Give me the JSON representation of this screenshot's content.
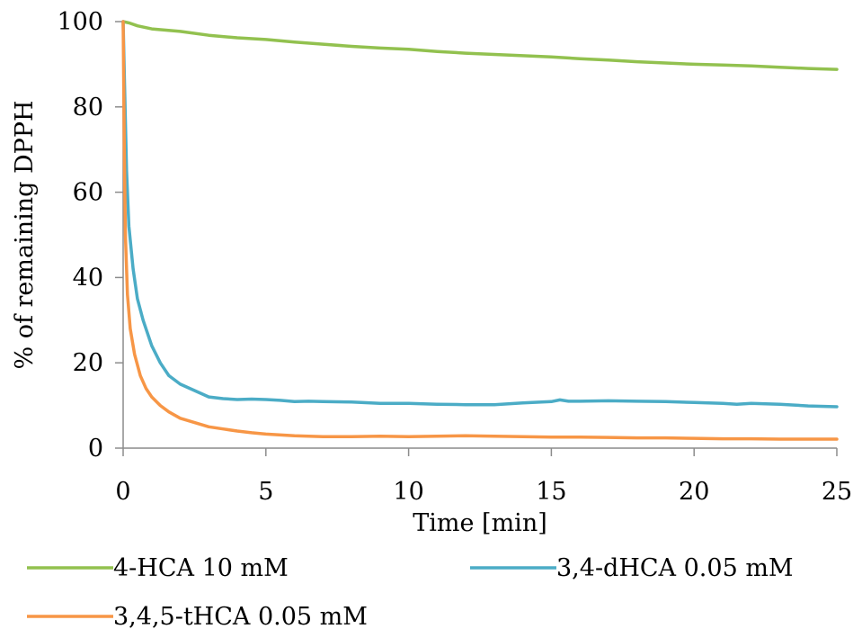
{
  "chart_data": {
    "type": "line",
    "title": "",
    "xlabel": "Time [min]",
    "ylabel": "% of remaining DPPH",
    "xlim": [
      0,
      25
    ],
    "ylim": [
      0,
      100
    ],
    "xticks": [
      0,
      5,
      10,
      15,
      20,
      25
    ],
    "yticks": [
      0,
      20,
      40,
      60,
      80,
      100
    ],
    "grid": false,
    "legend_position": "bottom",
    "series": [
      {
        "name": "4-HCA 10 mM",
        "color": "#92c14f",
        "points": [
          [
            0,
            100
          ],
          [
            0.2,
            99.7
          ],
          [
            0.5,
            99
          ],
          [
            1,
            98.3
          ],
          [
            2,
            97.7
          ],
          [
            3,
            96.8
          ],
          [
            4,
            96.2
          ],
          [
            5,
            95.8
          ],
          [
            6,
            95.2
          ],
          [
            7,
            94.7
          ],
          [
            8,
            94.2
          ],
          [
            9,
            93.8
          ],
          [
            10,
            93.5
          ],
          [
            11,
            93
          ],
          [
            12,
            92.6
          ],
          [
            13,
            92.3
          ],
          [
            14,
            92
          ],
          [
            15,
            91.7
          ],
          [
            16,
            91.3
          ],
          [
            17,
            91
          ],
          [
            18,
            90.6
          ],
          [
            19,
            90.3
          ],
          [
            20,
            90
          ],
          [
            21,
            89.8
          ],
          [
            22,
            89.6
          ],
          [
            23,
            89.3
          ],
          [
            24,
            89
          ],
          [
            25,
            88.8
          ]
        ]
      },
      {
        "name": "3,4-dHCA 0.05 mM",
        "color": "#4bacc6",
        "points": [
          [
            0,
            100
          ],
          [
            0.05,
            85
          ],
          [
            0.12,
            65
          ],
          [
            0.2,
            52
          ],
          [
            0.35,
            42
          ],
          [
            0.5,
            35
          ],
          [
            0.7,
            30
          ],
          [
            1,
            24
          ],
          [
            1.3,
            20
          ],
          [
            1.6,
            17
          ],
          [
            2,
            15
          ],
          [
            2.5,
            13.5
          ],
          [
            3,
            12
          ],
          [
            3.5,
            11.6
          ],
          [
            4,
            11.4
          ],
          [
            4.5,
            11.5
          ],
          [
            5,
            11.4
          ],
          [
            5.5,
            11.2
          ],
          [
            6,
            10.9
          ],
          [
            6.5,
            11
          ],
          [
            7,
            10.9
          ],
          [
            8,
            10.8
          ],
          [
            9,
            10.5
          ],
          [
            10,
            10.5
          ],
          [
            11,
            10.3
          ],
          [
            12,
            10.2
          ],
          [
            13,
            10.2
          ],
          [
            14,
            10.6
          ],
          [
            15,
            10.9
          ],
          [
            15.3,
            11.3
          ],
          [
            15.6,
            11
          ],
          [
            16,
            11
          ],
          [
            17,
            11.1
          ],
          [
            18,
            11
          ],
          [
            19,
            10.9
          ],
          [
            20,
            10.7
          ],
          [
            21,
            10.5
          ],
          [
            21.5,
            10.3
          ],
          [
            22,
            10.5
          ],
          [
            23,
            10.3
          ],
          [
            24,
            9.9
          ],
          [
            25,
            9.7
          ]
        ]
      },
      {
        "name": "3,4,5-tHCA 0.05 mM",
        "color": "#f79646",
        "points": [
          [
            0,
            100
          ],
          [
            0.04,
            70
          ],
          [
            0.08,
            50
          ],
          [
            0.15,
            36
          ],
          [
            0.25,
            28
          ],
          [
            0.4,
            22
          ],
          [
            0.6,
            17
          ],
          [
            0.8,
            14
          ],
          [
            1,
            12
          ],
          [
            1.3,
            10
          ],
          [
            1.6,
            8.5
          ],
          [
            2,
            7
          ],
          [
            2.5,
            6
          ],
          [
            3,
            5
          ],
          [
            3.5,
            4.5
          ],
          [
            4,
            4
          ],
          [
            4.5,
            3.6
          ],
          [
            5,
            3.3
          ],
          [
            6,
            2.9
          ],
          [
            7,
            2.7
          ],
          [
            8,
            2.7
          ],
          [
            9,
            2.8
          ],
          [
            10,
            2.7
          ],
          [
            11,
            2.8
          ],
          [
            12,
            2.9
          ],
          [
            13,
            2.8
          ],
          [
            14,
            2.7
          ],
          [
            15,
            2.6
          ],
          [
            16,
            2.6
          ],
          [
            17,
            2.5
          ],
          [
            18,
            2.4
          ],
          [
            19,
            2.4
          ],
          [
            20,
            2.3
          ],
          [
            21,
            2.2
          ],
          [
            22,
            2.2
          ],
          [
            23,
            2.1
          ],
          [
            24,
            2.1
          ],
          [
            25,
            2.1
          ]
        ]
      }
    ]
  }
}
